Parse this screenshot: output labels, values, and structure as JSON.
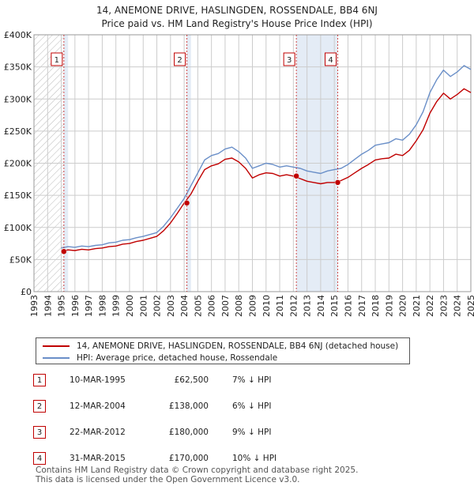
{
  "title_line1": "14, ANEMONE DRIVE, HASLINGDEN, ROSSENDALE, BB4 6NJ",
  "title_line2": "Price paid vs. HM Land Registry's House Price Index (HPI)",
  "colors": {
    "property": "#c00000",
    "hpi": "#6a8fc8",
    "grid": "#cccccc",
    "shade": "#e4ecf6",
    "marker_border": "#c00000"
  },
  "legend": {
    "property_label": "14, ANEMONE DRIVE, HASLINGDEN, ROSSENDALE, BB4 6NJ (detached house)",
    "hpi_label": "HPI: Average price, detached house, Rossendale"
  },
  "transactions": [
    {
      "num": "1",
      "date": "10-MAR-1995",
      "price": "£62,500",
      "hpi_delta": "7% ↓ HPI"
    },
    {
      "num": "2",
      "date": "12-MAR-2004",
      "price": "£138,000",
      "hpi_delta": "6% ↓ HPI"
    },
    {
      "num": "3",
      "date": "22-MAR-2012",
      "price": "£180,000",
      "hpi_delta": "9% ↓ HPI"
    },
    {
      "num": "4",
      "date": "31-MAR-2015",
      "price": "£170,000",
      "hpi_delta": "10% ↓ HPI"
    }
  ],
  "footer_line1": "Contains HM Land Registry data © Crown copyright and database right 2025.",
  "footer_line2": "This data is licensed under the Open Government Licence v3.0.",
  "chart_data": {
    "type": "line",
    "title": "14, ANEMONE DRIVE, HASLINGDEN, ROSSENDALE, BB4 6NJ — Price paid vs. HM Land Registry's House Price Index (HPI)",
    "xlim": [
      1993,
      2025
    ],
    "ylim": [
      0,
      400000
    ],
    "x_ticks": [
      "1993",
      "1994",
      "1995",
      "1996",
      "1997",
      "1998",
      "1999",
      "2000",
      "2001",
      "2002",
      "2003",
      "2004",
      "2005",
      "2006",
      "2007",
      "2008",
      "2009",
      "2010",
      "2011",
      "2012",
      "2013",
      "2014",
      "2015",
      "2016",
      "2017",
      "2018",
      "2019",
      "2020",
      "2021",
      "2022",
      "2023",
      "2024",
      "2025"
    ],
    "y_ticks": [
      {
        "value": 0,
        "label": "£0"
      },
      {
        "value": 50000,
        "label": "£50K"
      },
      {
        "value": 100000,
        "label": "£100K"
      },
      {
        "value": 150000,
        "label": "£150K"
      },
      {
        "value": 200000,
        "label": "£200K"
      },
      {
        "value": 250000,
        "label": "£250K"
      },
      {
        "value": 300000,
        "label": "£300K"
      },
      {
        "value": 350000,
        "label": "£350K"
      },
      {
        "value": 400000,
        "label": "£400K"
      }
    ],
    "grid": true,
    "hatched_range": [
      1993,
      1995.19
    ],
    "shaded_ranges": [
      [
        1995.19,
        1995.5
      ],
      [
        2004.2,
        2004.5
      ],
      [
        2012.22,
        2015.25
      ]
    ],
    "sale_markers": [
      {
        "num": "1",
        "x": 1995.19,
        "y": 62500
      },
      {
        "num": "2",
        "x": 2004.2,
        "y": 138000
      },
      {
        "num": "3",
        "x": 2012.22,
        "y": 180000
      },
      {
        "num": "4",
        "x": 2015.25,
        "y": 170000
      }
    ],
    "series": [
      {
        "name": "HPI: Average price, detached house, Rossendale",
        "x": [
          1995.0,
          1995.5,
          1996.0,
          1996.5,
          1997.0,
          1997.5,
          1998.0,
          1998.5,
          1999.0,
          1999.5,
          2000.0,
          2000.5,
          2001.0,
          2001.5,
          2002.0,
          2002.5,
          2003.0,
          2003.5,
          2004.0,
          2004.5,
          2005.0,
          2005.5,
          2006.0,
          2006.5,
          2007.0,
          2007.5,
          2008.0,
          2008.5,
          2009.0,
          2009.5,
          2010.0,
          2010.5,
          2011.0,
          2011.5,
          2012.0,
          2012.5,
          2013.0,
          2013.5,
          2014.0,
          2014.5,
          2015.0,
          2015.5,
          2016.0,
          2016.5,
          2017.0,
          2017.5,
          2018.0,
          2018.5,
          2019.0,
          2019.5,
          2020.0,
          2020.5,
          2021.0,
          2021.5,
          2022.0,
          2022.5,
          2023.0,
          2023.5,
          2024.0,
          2024.5,
          2025.0
        ],
        "y": [
          68000,
          70000,
          69000,
          71000,
          70000,
          72000,
          73000,
          76000,
          77000,
          80000,
          81000,
          84000,
          86000,
          89000,
          92000,
          102000,
          115000,
          130000,
          145000,
          165000,
          185000,
          205000,
          212000,
          215000,
          222000,
          225000,
          218000,
          208000,
          192000,
          196000,
          200000,
          198000,
          194000,
          196000,
          194000,
          192000,
          188000,
          186000,
          184000,
          188000,
          190000,
          192000,
          198000,
          206000,
          214000,
          220000,
          228000,
          230000,
          232000,
          238000,
          236000,
          245000,
          260000,
          280000,
          310000,
          330000,
          345000,
          335000,
          342000,
          352000,
          346000
        ]
      },
      {
        "name": "14, ANEMONE DRIVE, HASLINGDEN, ROSSENDALE, BB4 6NJ (detached house)",
        "x": [
          1995.0,
          1995.5,
          1996.0,
          1996.5,
          1997.0,
          1997.5,
          1998.0,
          1998.5,
          1999.0,
          1999.5,
          2000.0,
          2000.5,
          2001.0,
          2001.5,
          2002.0,
          2002.5,
          2003.0,
          2003.5,
          2004.0,
          2004.5,
          2005.0,
          2005.5,
          2006.0,
          2006.5,
          2007.0,
          2007.5,
          2008.0,
          2008.5,
          2009.0,
          2009.5,
          2010.0,
          2010.5,
          2011.0,
          2011.5,
          2012.0,
          2012.5,
          2013.0,
          2013.5,
          2014.0,
          2014.5,
          2015.0,
          2015.5,
          2016.0,
          2016.5,
          2017.0,
          2017.5,
          2018.0,
          2018.5,
          2019.0,
          2019.5,
          2020.0,
          2020.5,
          2021.0,
          2021.5,
          2022.0,
          2022.5,
          2023.0,
          2023.5,
          2024.0,
          2024.5,
          2025.0
        ],
        "y": [
          62500,
          65000,
          64000,
          66000,
          65000,
          67000,
          68000,
          70000,
          71000,
          74000,
          75000,
          78000,
          80000,
          83000,
          86000,
          95000,
          107000,
          122000,
          138000,
          152000,
          172000,
          190000,
          196000,
          199000,
          206000,
          208000,
          202000,
          192000,
          177000,
          182000,
          185000,
          184000,
          180000,
          182000,
          180000,
          176000,
          172000,
          170000,
          168000,
          170000,
          170000,
          173000,
          178000,
          185000,
          192000,
          198000,
          205000,
          207000,
          208000,
          214000,
          212000,
          220000,
          235000,
          252000,
          278000,
          296000,
          309000,
          300000,
          307000,
          316000,
          310000
        ]
      }
    ]
  }
}
